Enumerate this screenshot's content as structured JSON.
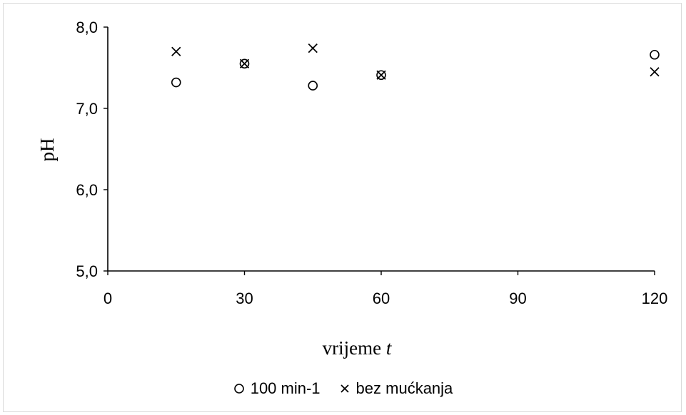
{
  "chart_data": {
    "type": "scatter",
    "title": "",
    "xlabel": "vrijeme",
    "xlabel_var": "t",
    "ylabel": "pH",
    "xlim": [
      0,
      120
    ],
    "ylim": [
      5.0,
      8.0
    ],
    "xticks": [
      0,
      30,
      60,
      90,
      120
    ],
    "yticks": [
      5.0,
      6.0,
      7.0,
      8.0
    ],
    "xtick_labels": [
      "0",
      "30",
      "60",
      "90",
      "120"
    ],
    "ytick_labels": [
      "5,0",
      "6,0",
      "7,0",
      "8,0"
    ],
    "grid": false,
    "legend_position": "bottom",
    "series": [
      {
        "name": "100 min-1",
        "marker": "circle",
        "color": "#000000",
        "x": [
          15,
          30,
          45,
          60,
          120
        ],
        "y": [
          7.32,
          7.55,
          7.28,
          7.41,
          7.66
        ]
      },
      {
        "name": "bez mućkanja",
        "marker": "cross",
        "color": "#000000",
        "x": [
          15,
          30,
          45,
          60,
          120
        ],
        "y": [
          7.7,
          7.55,
          7.74,
          7.41,
          7.45
        ]
      }
    ]
  }
}
